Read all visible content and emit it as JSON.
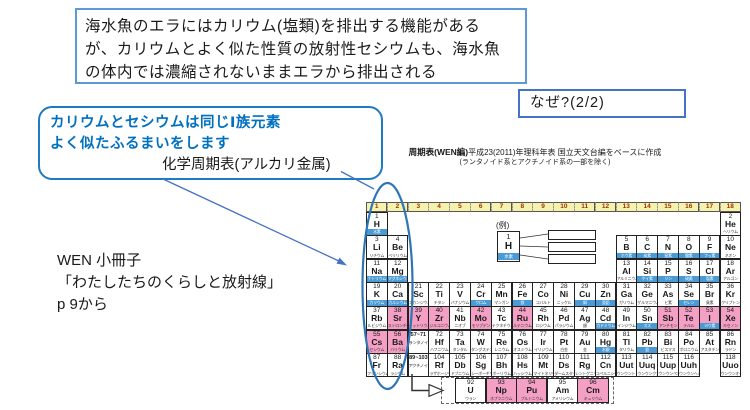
{
  "slide": {
    "statement_box": {
      "lines": [
        "海水魚のエラにはカリウム(塩類)を排出する機能がある",
        "が、カリウムとよく似た性質の放射性セシウムも、海水魚",
        "の体内では濃縮されないままエラから排出される"
      ]
    },
    "question_box": {
      "text": "なぜ?(2/2)"
    },
    "callout_box": {
      "line1": "カリウムとセシウムは同じⅠ族元素",
      "line2": "よく似たふるまいをします",
      "caption": "化学周期表(アルカリ金属)"
    },
    "source_note": {
      "lines": [
        "WEN 小冊子",
        "「わたしたちのくらしと放射線」",
        "p 9から"
      ]
    }
  },
  "periodic_table": {
    "title_bold": "周期表(WEN編)",
    "title_rest": "平成23(2011)年理科年表 国立天文台編をベースに作成",
    "title_note": "(ランタノイド系とアクチノイド系の一部を除く)",
    "example_label": "(例)",
    "example_cell": {
      "n": "1",
      "s": "H",
      "j": "水素"
    },
    "group_numbers": [
      "1",
      "2",
      "3",
      "4",
      "5",
      "6",
      "7",
      "8",
      "9",
      "10",
      "11",
      "12",
      "13",
      "14",
      "15",
      "16",
      "17",
      "18"
    ],
    "elements": [
      {
        "n": 1,
        "s": "H",
        "j": "水素",
        "r": 1,
        "c": 1,
        "b": 1
      },
      {
        "n": 2,
        "s": "He",
        "j": "ヘリウム",
        "r": 1,
        "c": 18
      },
      {
        "n": 3,
        "s": "Li",
        "j": "リチウム",
        "r": 2,
        "c": 1
      },
      {
        "n": 4,
        "s": "Be",
        "j": "ベリリウム",
        "r": 2,
        "c": 2
      },
      {
        "n": 5,
        "s": "B",
        "j": "ホウ素",
        "r": 2,
        "c": 13,
        "b": 1
      },
      {
        "n": 6,
        "s": "C",
        "j": "炭素",
        "r": 2,
        "c": 14,
        "b": 1
      },
      {
        "n": 7,
        "s": "N",
        "j": "窒素",
        "r": 2,
        "c": 15,
        "b": 1
      },
      {
        "n": 8,
        "s": "O",
        "j": "酸素",
        "r": 2,
        "c": 16,
        "b": 1
      },
      {
        "n": 9,
        "s": "F",
        "j": "フッ素",
        "r": 2,
        "c": 17,
        "b": 1
      },
      {
        "n": 10,
        "s": "Ne",
        "j": "ネオン",
        "r": 2,
        "c": 18
      },
      {
        "n": 11,
        "s": "Na",
        "j": "ナトリウム",
        "r": 3,
        "c": 1,
        "b": 1
      },
      {
        "n": 12,
        "s": "Mg",
        "j": "マグネシウム",
        "r": 3,
        "c": 2,
        "b": 1
      },
      {
        "n": 13,
        "s": "Al",
        "j": "アルミニウム",
        "r": 3,
        "c": 13
      },
      {
        "n": 14,
        "s": "Si",
        "j": "ケイ素",
        "r": 3,
        "c": 14,
        "b": 1
      },
      {
        "n": 15,
        "s": "P",
        "j": "リン",
        "r": 3,
        "c": 15,
        "b": 1
      },
      {
        "n": 16,
        "s": "S",
        "j": "硫黄",
        "r": 3,
        "c": 16,
        "b": 1
      },
      {
        "n": 17,
        "s": "Cl",
        "j": "塩素",
        "r": 3,
        "c": 17,
        "b": 1
      },
      {
        "n": 18,
        "s": "Ar",
        "j": "アルゴン",
        "r": 3,
        "c": 18
      },
      {
        "n": 19,
        "s": "K",
        "j": "カリウム",
        "r": 4,
        "c": 1,
        "b": 1
      },
      {
        "n": 20,
        "s": "Ca",
        "j": "カルシウム",
        "r": 4,
        "c": 2,
        "b": 1
      },
      {
        "n": 21,
        "s": "Sc",
        "j": "スカンジウム",
        "r": 4,
        "c": 3
      },
      {
        "n": 22,
        "s": "Ti",
        "j": "チタン",
        "r": 4,
        "c": 4
      },
      {
        "n": 23,
        "s": "V",
        "j": "バナジウム",
        "r": 4,
        "c": 5
      },
      {
        "n": 24,
        "s": "Cr",
        "j": "クロム",
        "r": 4,
        "c": 6,
        "b": 1
      },
      {
        "n": 25,
        "s": "Mn",
        "j": "マンガン",
        "r": 4,
        "c": 7
      },
      {
        "n": 26,
        "s": "Fe",
        "j": "鉄",
        "r": 4,
        "c": 8,
        "b": 1
      },
      {
        "n": 27,
        "s": "Co",
        "j": "コバルト",
        "r": 4,
        "c": 9
      },
      {
        "n": 28,
        "s": "Ni",
        "j": "ニッケル",
        "r": 4,
        "c": 10
      },
      {
        "n": 29,
        "s": "Cu",
        "j": "銅",
        "r": 4,
        "c": 11,
        "b": 1
      },
      {
        "n": 30,
        "s": "Zn",
        "j": "亜鉛",
        "r": 4,
        "c": 12,
        "b": 1
      },
      {
        "n": 31,
        "s": "Ga",
        "j": "ガリウム",
        "r": 4,
        "c": 13
      },
      {
        "n": 32,
        "s": "Ge",
        "j": "ゲルマニウム",
        "r": 4,
        "c": 14
      },
      {
        "n": 33,
        "s": "As",
        "j": "ヒ素",
        "r": 4,
        "c": 15
      },
      {
        "n": 34,
        "s": "Se",
        "j": "セレン",
        "r": 4,
        "c": 16,
        "b": 1
      },
      {
        "n": 35,
        "s": "Br",
        "j": "臭素",
        "r": 4,
        "c": 17
      },
      {
        "n": 36,
        "s": "Kr",
        "j": "クリプトン",
        "r": 4,
        "c": 18
      },
      {
        "n": 37,
        "s": "Rb",
        "j": "ルビジウム",
        "r": 5,
        "c": 1
      },
      {
        "n": 38,
        "s": "Sr",
        "j": "ストロンチウム",
        "r": 5,
        "c": 2,
        "f": 1
      },
      {
        "n": 39,
        "s": "Y",
        "j": "イットリウム",
        "r": 5,
        "c": 3,
        "f": 1
      },
      {
        "n": 40,
        "s": "Zr",
        "j": "ジルコニウム",
        "r": 5,
        "c": 4,
        "f": 1
      },
      {
        "n": 41,
        "s": "Nb",
        "j": "ニオブ",
        "r": 5,
        "c": 5
      },
      {
        "n": 42,
        "s": "Mo",
        "j": "モリブデン",
        "r": 5,
        "c": 6,
        "f": 1
      },
      {
        "n": 43,
        "s": "Tc",
        "j": "テクネチウム",
        "r": 5,
        "c": 7
      },
      {
        "n": 44,
        "s": "Ru",
        "j": "ルテニウム",
        "r": 5,
        "c": 8,
        "f": 1
      },
      {
        "n": 45,
        "s": "Rh",
        "j": "ロジウム",
        "r": 5,
        "c": 9
      },
      {
        "n": 46,
        "s": "Pd",
        "j": "パラジウム",
        "r": 5,
        "c": 10
      },
      {
        "n": 47,
        "s": "Ag",
        "j": "銀",
        "r": 5,
        "c": 11
      },
      {
        "n": 48,
        "s": "Cd",
        "j": "カドミウム",
        "r": 5,
        "c": 12,
        "b": 1
      },
      {
        "n": 49,
        "s": "In",
        "j": "インジウム",
        "r": 5,
        "c": 13
      },
      {
        "n": 50,
        "s": "Sn",
        "j": "スズ",
        "r": 5,
        "c": 14,
        "b": 1
      },
      {
        "n": 51,
        "s": "Sb",
        "j": "アンチモン",
        "r": 5,
        "c": 15,
        "f": 1
      },
      {
        "n": 52,
        "s": "Te",
        "j": "テルル",
        "r": 5,
        "c": 16,
        "f": 1
      },
      {
        "n": 53,
        "s": "I",
        "j": "ヨウ素",
        "r": 5,
        "c": 17,
        "f": 1,
        "b": 1
      },
      {
        "n": 54,
        "s": "Xe",
        "j": "キセノン",
        "r": 5,
        "c": 18,
        "f": 1
      },
      {
        "n": 55,
        "s": "Cs",
        "j": "セシウム",
        "r": 6,
        "c": 1,
        "f": 1
      },
      {
        "n": 56,
        "s": "Ba",
        "j": "バリウム",
        "r": 6,
        "c": 2,
        "f": 1
      },
      {
        "range": "57~71",
        "j": "ランタノイド",
        "r": 6,
        "c": 3
      },
      {
        "n": 72,
        "s": "Hf",
        "j": "ハフニウム",
        "r": 6,
        "c": 4
      },
      {
        "n": 73,
        "s": "Ta",
        "j": "タンタル",
        "r": 6,
        "c": 5
      },
      {
        "n": 74,
        "s": "W",
        "j": "タングステン",
        "r": 6,
        "c": 6
      },
      {
        "n": 75,
        "s": "Re",
        "j": "レニウム",
        "r": 6,
        "c": 7
      },
      {
        "n": 76,
        "s": "Os",
        "j": "オスミウム",
        "r": 6,
        "c": 8
      },
      {
        "n": 77,
        "s": "Ir",
        "j": "イリジウム",
        "r": 6,
        "c": 9
      },
      {
        "n": 78,
        "s": "Pt",
        "j": "白金",
        "r": 6,
        "c": 10
      },
      {
        "n": 79,
        "s": "Au",
        "j": "金",
        "r": 6,
        "c": 11
      },
      {
        "n": 80,
        "s": "Hg",
        "j": "水銀",
        "r": 6,
        "c": 12,
        "b": 1
      },
      {
        "n": 81,
        "s": "Tl",
        "j": "タリウム",
        "r": 6,
        "c": 13
      },
      {
        "n": 82,
        "s": "Pb",
        "j": "鉛",
        "r": 6,
        "c": 14,
        "b": 1
      },
      {
        "n": 83,
        "s": "Bi",
        "j": "ビスマス",
        "r": 6,
        "c": 15
      },
      {
        "n": 84,
        "s": "Po",
        "j": "ポロニウム",
        "r": 6,
        "c": 16
      },
      {
        "n": 85,
        "s": "At",
        "j": "アスタチン",
        "r": 6,
        "c": 17
      },
      {
        "n": 86,
        "s": "Rn",
        "j": "ラドン",
        "r": 6,
        "c": 18
      },
      {
        "n": 87,
        "s": "Fr",
        "j": "フランシウム",
        "r": 7,
        "c": 1
      },
      {
        "n": 88,
        "s": "Ra",
        "j": "ラジウム",
        "r": 7,
        "c": 2
      },
      {
        "range": "89~103",
        "j": "アクチノイド",
        "r": 7,
        "c": 3
      },
      {
        "n": 104,
        "s": "Rf",
        "j": "ラザホージウム",
        "r": 7,
        "c": 4
      },
      {
        "n": 105,
        "s": "Db",
        "j": "ドブニウム",
        "r": 7,
        "c": 5
      },
      {
        "n": 106,
        "s": "Sg",
        "j": "シーボーギウム",
        "r": 7,
        "c": 6
      },
      {
        "n": 107,
        "s": "Bh",
        "j": "ボーリウム",
        "r": 7,
        "c": 7
      },
      {
        "n": 108,
        "s": "Hs",
        "j": "ハッシウム",
        "r": 7,
        "c": 8
      },
      {
        "n": 109,
        "s": "Mt",
        "j": "マイトネリウム",
        "r": 7,
        "c": 9
      },
      {
        "n": 110,
        "s": "Ds",
        "j": "ダームスタチウム",
        "r": 7,
        "c": 10
      },
      {
        "n": 111,
        "s": "Rg",
        "j": "レントゲニウム",
        "r": 7,
        "c": 11
      },
      {
        "n": 112,
        "s": "Cn",
        "j": "コペルニシウム",
        "r": 7,
        "c": 12
      },
      {
        "n": 113,
        "s": "Uut",
        "j": "ウンウントリウム",
        "r": 7,
        "c": 13
      },
      {
        "n": 114,
        "s": "Uuq",
        "j": "ウンウンクアジウム",
        "r": 7,
        "c": 14
      },
      {
        "n": 115,
        "s": "Uup",
        "j": "ウンウンペンチウム",
        "r": 7,
        "c": 15
      },
      {
        "n": 116,
        "s": "Uuh",
        "j": "ウンウンヘキシウム",
        "r": 7,
        "c": 16
      },
      {
        "n": 118,
        "s": "Uuo",
        "j": "ウンウンオクチウム",
        "r": 7,
        "c": 18
      }
    ],
    "inset_elements": [
      {
        "n": 92,
        "s": "U",
        "j": "ウラン"
      },
      {
        "n": 93,
        "s": "Np",
        "j": "ネプツニウム",
        "f": 1
      },
      {
        "n": 94,
        "s": "Pu",
        "j": "プルトニウム",
        "f": 1
      },
      {
        "n": 95,
        "s": "Am",
        "j": "アメリシウム"
      },
      {
        "n": 96,
        "s": "Cm",
        "j": "キュリウム",
        "f": 1
      }
    ]
  },
  "colors": {
    "box_border_light_blue": "#5B9BD5",
    "box_border_blue": "#4472C4",
    "callout_border_blue": "#1F7AC4",
    "callout_text_blue": "#0070C0",
    "pink_highlight": "#F49FC4",
    "strip_blue": "#4A9AD5",
    "header_yellow": "#F6F2AC",
    "header_number_red": "#993300",
    "ellipse_blue": "#2E75B6"
  }
}
